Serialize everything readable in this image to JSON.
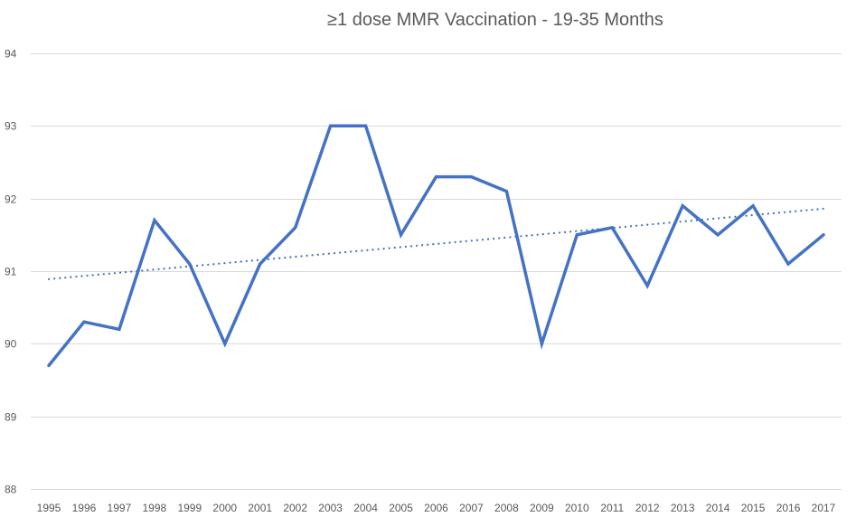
{
  "chart_data": {
    "type": "line",
    "title": "≥1 dose MMR Vaccination - 19-35 Months",
    "xlabel": "",
    "ylabel": "",
    "categories": [
      "1995",
      "1996",
      "1997",
      "1998",
      "1999",
      "2000",
      "2001",
      "2002",
      "2003",
      "2004",
      "2005",
      "2006",
      "2007",
      "2008",
      "2009",
      "2010",
      "2011",
      "2012",
      "2013",
      "2014",
      "2015",
      "2016",
      "2017"
    ],
    "series": [
      {
        "name": "≥1 dose MMR",
        "values": [
          89.7,
          90.3,
          90.2,
          91.7,
          91.1,
          90.0,
          91.1,
          91.6,
          93.0,
          93.0,
          91.5,
          92.3,
          92.3,
          92.1,
          90.0,
          91.5,
          91.6,
          90.8,
          91.9,
          91.5,
          91.9,
          91.1,
          91.5
        ],
        "color": "#4472C4"
      }
    ],
    "trendline": {
      "type": "linear",
      "style": "dotted",
      "start": 90.89,
      "end": 91.86,
      "color": "#4472C4"
    },
    "ylim": [
      88,
      94
    ],
    "yticks": [
      88,
      89,
      90,
      91,
      92,
      93,
      94
    ],
    "grid": true,
    "legend": "none"
  }
}
